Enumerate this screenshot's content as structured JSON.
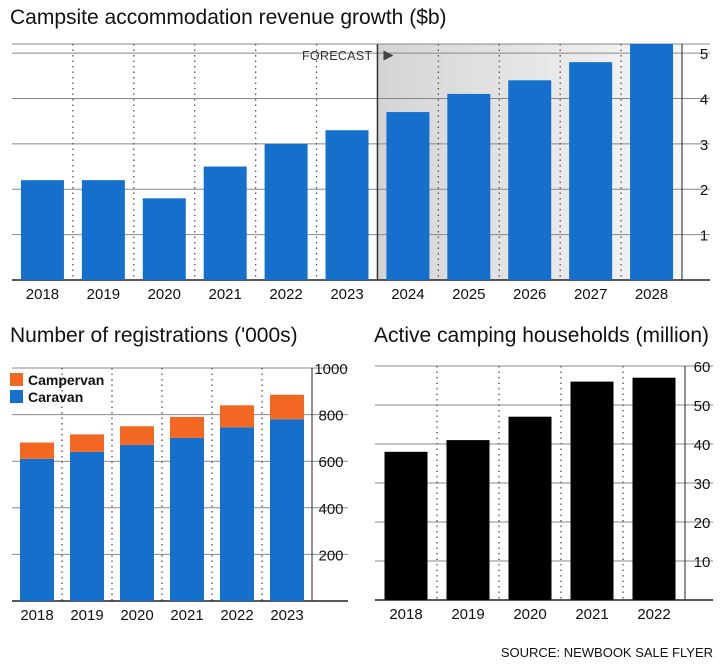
{
  "chart_data": [
    {
      "type": "bar",
      "title": "Campsite accommodation revenue growth ($b)",
      "categories": [
        "2018",
        "2019",
        "2020",
        "2021",
        "2022",
        "2023",
        "2024",
        "2025",
        "2026",
        "2027",
        "2028"
      ],
      "values": [
        2.2,
        2.2,
        1.8,
        2.5,
        3.0,
        3.3,
        3.7,
        4.1,
        4.4,
        4.8,
        5.2
      ],
      "ylim": [
        0,
        5.2
      ],
      "yticks": [
        1,
        2,
        3,
        4,
        5
      ],
      "color": "#1470cc",
      "grid": true,
      "forecast_from": "2024",
      "forecast_label": "FORECAST"
    },
    {
      "type": "bar",
      "stacked": true,
      "title": "Number of registrations ('000s)",
      "categories": [
        "2018",
        "2019",
        "2020",
        "2021",
        "2022",
        "2023"
      ],
      "series": [
        {
          "name": "Caravan",
          "values": [
            610,
            640,
            670,
            700,
            745,
            780
          ],
          "color": "#1470cc"
        },
        {
          "name": "Campervan",
          "values": [
            70,
            75,
            80,
            90,
            95,
            105
          ],
          "color": "#f26722"
        }
      ],
      "ylim": [
        0,
        1000
      ],
      "yticks": [
        200,
        400,
        600,
        800,
        1000
      ],
      "grid": true,
      "legend": "top-left"
    },
    {
      "type": "bar",
      "title": "Active camping households (million)",
      "categories": [
        "2018",
        "2019",
        "2020",
        "2021",
        "2022"
      ],
      "values": [
        38,
        41,
        47,
        56,
        57
      ],
      "ylim": [
        0,
        60
      ],
      "yticks": [
        10,
        20,
        30,
        40,
        50,
        60
      ],
      "color": "#000000",
      "grid": true
    }
  ],
  "source": "SOURCE: NEWBOOK SALE FLYER",
  "colors": {
    "gridline": "#888888",
    "axis": "#222222",
    "forecast_shade": "#e6e6e6"
  }
}
